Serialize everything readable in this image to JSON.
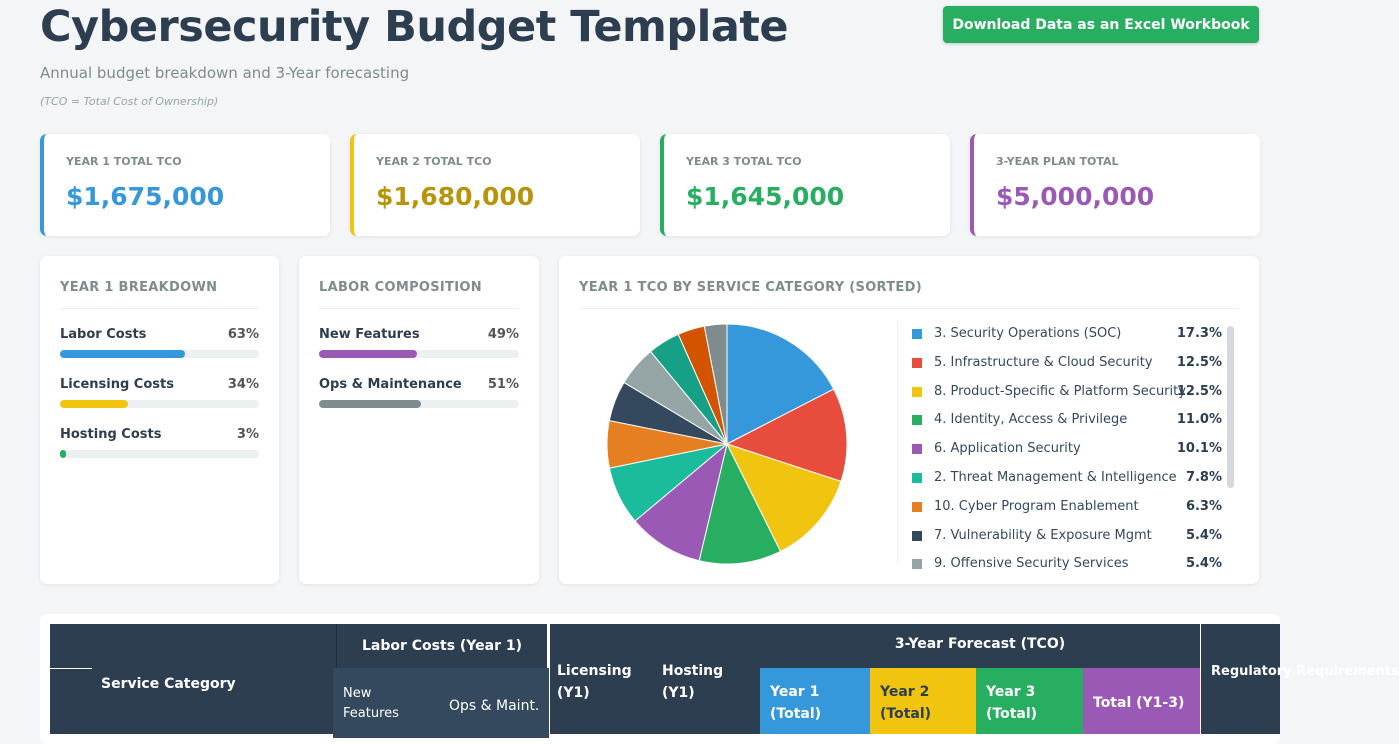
{
  "header": {
    "title": "Cybersecurity Budget Template",
    "subtitle": "Annual budget breakdown and 3-Year forecasting",
    "note": "(TCO = Total Cost of Ownership)",
    "download_label": "Download Data as an Excel Workbook"
  },
  "colors": {
    "blue": "#3498db",
    "yellow": "#f1c40f",
    "green": "#27ae60",
    "purple": "#9b59b6",
    "gray": "#7f8c8d"
  },
  "kpis": [
    {
      "label": "YEAR 1 TOTAL TCO",
      "value": "$1,675,000",
      "color": "#3498db"
    },
    {
      "label": "YEAR 2 TOTAL TCO",
      "value": "$1,680,000",
      "color": "#b7950b"
    },
    {
      "label": "YEAR 3 TOTAL TCO",
      "value": "$1,645,000",
      "color": "#27ae60"
    },
    {
      "label": "3-YEAR PLAN TOTAL",
      "value": "$5,000,000",
      "color": "#9b59b6"
    }
  ],
  "breakdown": {
    "title": "YEAR 1 BREAKDOWN",
    "items": [
      {
        "label": "Labor Costs",
        "pct": "63%",
        "value": 63,
        "color": "#3498db"
      },
      {
        "label": "Licensing Costs",
        "pct": "34%",
        "value": 34,
        "color": "#f1c40f"
      },
      {
        "label": "Hosting Costs",
        "pct": "3%",
        "value": 3,
        "color": "#27ae60"
      }
    ]
  },
  "labor": {
    "title": "LABOR COMPOSITION",
    "items": [
      {
        "label": "New Features",
        "pct": "49%",
        "value": 49,
        "color": "#9b59b6"
      },
      {
        "label": "Ops & Maintenance",
        "pct": "51%",
        "value": 51,
        "color": "#7f8c8d"
      }
    ]
  },
  "chart_panel": {
    "title": "YEAR 1 TCO BY SERVICE CATEGORY (SORTED)"
  },
  "chart_data": {
    "type": "pie",
    "title": "YEAR 1 TCO BY SERVICE CATEGORY (SORTED)",
    "slices": [
      {
        "label": "3. Security Operations (SOC)",
        "pct": "17.3%",
        "value": 17.3,
        "color": "#3498db"
      },
      {
        "label": "5. Infrastructure & Cloud Security",
        "pct": "12.5%",
        "value": 12.5,
        "color": "#e74c3c"
      },
      {
        "label": "8. Product-Specific & Platform Security",
        "pct": "12.5%",
        "value": 12.5,
        "color": "#f1c40f"
      },
      {
        "label": "4. Identity, Access & Privilege",
        "pct": "11.0%",
        "value": 11.0,
        "color": "#27ae60"
      },
      {
        "label": "6. Application Security",
        "pct": "10.1%",
        "value": 10.1,
        "color": "#9b59b6"
      },
      {
        "label": "2. Threat Management & Intelligence",
        "pct": "7.8%",
        "value": 7.8,
        "color": "#1abc9c"
      },
      {
        "label": "10. Cyber Program Enablement",
        "pct": "6.3%",
        "value": 6.3,
        "color": "#e67e22"
      },
      {
        "label": "7. Vulnerability & Exposure Mgmt",
        "pct": "5.4%",
        "value": 5.4,
        "color": "#34495e"
      },
      {
        "label": "9. Offensive Security Services",
        "pct": "5.4%",
        "value": 5.4,
        "color": "#95a5a6"
      },
      {
        "label": "",
        "pct": "",
        "value": 4.3,
        "color": "#16a085"
      },
      {
        "label": "",
        "pct": "",
        "value": 3.6,
        "color": "#d35400"
      },
      {
        "label": "",
        "pct": "",
        "value": 3.0,
        "color": "#7f8c8d"
      }
    ]
  },
  "table": {
    "service_category": "Service Category",
    "labor_header": "Labor Costs (Year 1)",
    "new_features": "New Features",
    "ops_maint": "Ops & Maint.",
    "licensing": "Licensing (Y1)",
    "hosting": "Hosting (Y1)",
    "forecast_header": "3-Year Forecast (TCO)",
    "year1": "Year 1 (Total)",
    "year2": "Year 2 (Total)",
    "year3": "Year 3 (Total)",
    "total": "Total (Y1-3)",
    "regulatory": "Regulatory Requirements"
  }
}
